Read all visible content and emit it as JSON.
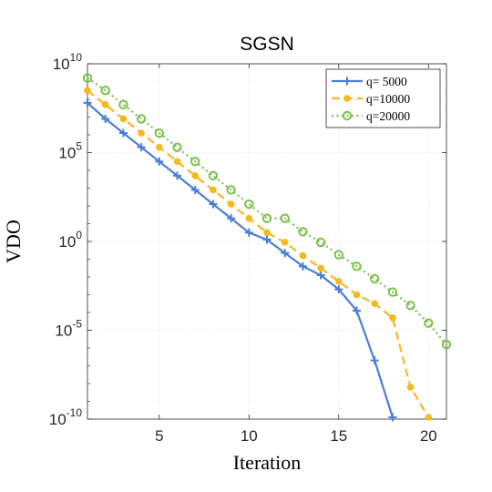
{
  "chart_data": {
    "type": "line",
    "title": "SGSN",
    "xlabel": "Iteration",
    "ylabel": "VDO",
    "xlim": [
      1,
      21
    ],
    "ylim": [
      -10,
      10
    ],
    "yscale": "log",
    "y_value_encoding": "log10",
    "grid": true,
    "legend_placement": "top-right",
    "x_ticks": [
      5,
      10,
      15,
      20
    ],
    "y_ticks": [
      {
        "base": "10",
        "exp": "10",
        "log10": 10
      },
      {
        "base": "10",
        "exp": "5",
        "log10": 5
      },
      {
        "base": "10",
        "exp": "0",
        "log10": 0
      },
      {
        "base": "10",
        "exp": "-5",
        "log10": -5
      },
      {
        "base": "10",
        "exp": "-10",
        "log10": -10
      }
    ],
    "series": [
      {
        "name": "q= 5000",
        "color": "#4a7fd6",
        "dash": "solid",
        "marker": "plus",
        "x": [
          1,
          2,
          3,
          4,
          5,
          6,
          7,
          8,
          9,
          10,
          11,
          12,
          13,
          14,
          15,
          16,
          17,
          18
        ],
        "y": [
          7.8,
          6.9,
          6.1,
          5.3,
          4.5,
          3.7,
          2.9,
          2.1,
          1.3,
          0.5,
          0.1,
          -0.65,
          -1.4,
          -1.9,
          -2.7,
          -3.9,
          -6.7,
          -12.8
        ]
      },
      {
        "name": "q=10000",
        "color": "#f5b81e",
        "dash": "dash",
        "marker": "dot",
        "x": [
          1,
          2,
          3,
          4,
          5,
          6,
          7,
          8,
          9,
          10,
          11,
          12,
          13,
          14,
          15,
          16,
          17,
          18,
          19,
          20
        ],
        "y": [
          8.5,
          7.7,
          6.9,
          6.1,
          5.3,
          4.5,
          3.7,
          2.9,
          2.1,
          1.3,
          0.5,
          -0.05,
          -0.8,
          -1.5,
          -2.25,
          -3.0,
          -3.5,
          -4.3,
          -8.2,
          -14.6
        ]
      },
      {
        "name": "q=20000",
        "color": "#79c24b",
        "dash": "dot",
        "marker": "circle",
        "x": [
          1,
          2,
          3,
          4,
          5,
          6,
          7,
          8,
          9,
          10,
          11,
          12,
          13,
          14,
          15,
          16,
          17,
          18,
          19,
          20,
          21
        ],
        "y": [
          9.2,
          8.5,
          7.7,
          6.9,
          6.1,
          5.3,
          4.5,
          3.7,
          2.9,
          2.1,
          1.3,
          1.3,
          0.55,
          -0.05,
          -0.75,
          -1.4,
          -2.1,
          -2.85,
          -3.6,
          -4.6,
          -5.8
        ]
      }
    ]
  }
}
